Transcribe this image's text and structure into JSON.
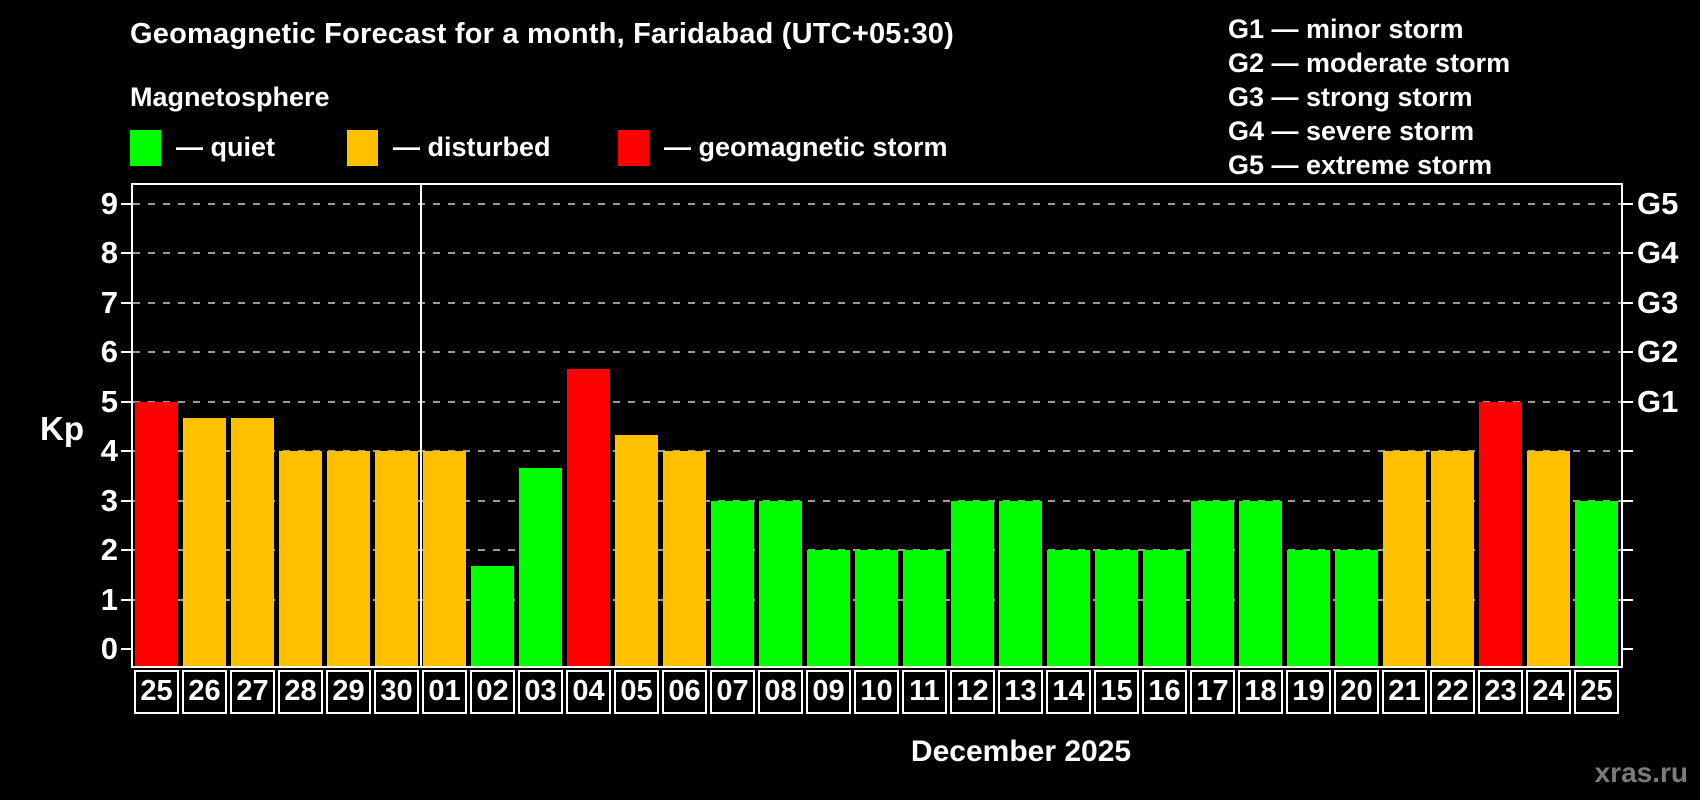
{
  "header": {
    "title": "Geomagnetic Forecast for a month, Faridabad (UTC+05:30)",
    "subtitle": "Magnetosphere"
  },
  "legend": {
    "items": [
      {
        "key": "quiet",
        "label": "— quiet"
      },
      {
        "key": "disturbed",
        "label": "— disturbed"
      },
      {
        "key": "storm",
        "label": "— geomagnetic storm"
      }
    ]
  },
  "storm_scale_legend": [
    "G1 — minor storm",
    "G2 — moderate storm",
    "G3 — strong storm",
    "G4 — severe storm",
    "G5 — extreme storm"
  ],
  "colors": {
    "quiet": "#00ff00",
    "disturbed": "#ffc000",
    "storm": "#ff0000",
    "background": "#000000",
    "axis": "#ffffff",
    "grid": "#9a9a9a",
    "watermark": "#7b7b7b"
  },
  "axis": {
    "y_label": "Kp",
    "y_ticks": [
      0,
      1,
      2,
      3,
      4,
      5,
      6,
      7,
      8,
      9
    ],
    "x_label": "December 2025"
  },
  "watermark": "xras.ru",
  "chart_data": {
    "type": "bar",
    "title": "Geomagnetic Forecast for a month, Faridabad (UTC+05:30)",
    "subtitle": "Magnetosphere",
    "xlabel": "December 2025",
    "ylabel": "Kp",
    "ylim": [
      -0.35,
      9.4
    ],
    "yticks": [
      0,
      1,
      2,
      3,
      4,
      5,
      6,
      7,
      8,
      9
    ],
    "grid": "horizontal-dashed",
    "legend_position": "top-left",
    "categories": [
      "25",
      "26",
      "27",
      "28",
      "29",
      "30",
      "01",
      "02",
      "03",
      "04",
      "05",
      "06",
      "07",
      "08",
      "09",
      "10",
      "11",
      "12",
      "13",
      "14",
      "15",
      "16",
      "17",
      "18",
      "19",
      "20",
      "21",
      "22",
      "23",
      "24",
      "25"
    ],
    "values": [
      5.0,
      4.67,
      4.67,
      4.0,
      4.0,
      4.0,
      4.0,
      1.67,
      3.67,
      5.67,
      4.33,
      4.0,
      3.0,
      3.0,
      2.0,
      2.0,
      2.0,
      3.0,
      3.0,
      2.0,
      2.0,
      2.0,
      3.0,
      3.0,
      2.0,
      2.0,
      4.0,
      4.0,
      5.0,
      4.0,
      3.0
    ],
    "statuses": [
      "storm",
      "disturbed",
      "disturbed",
      "disturbed",
      "disturbed",
      "disturbed",
      "disturbed",
      "quiet",
      "quiet",
      "storm",
      "disturbed",
      "disturbed",
      "quiet",
      "quiet",
      "quiet",
      "quiet",
      "quiet",
      "quiet",
      "quiet",
      "quiet",
      "quiet",
      "quiet",
      "quiet",
      "quiet",
      "quiet",
      "quiet",
      "disturbed",
      "disturbed",
      "storm",
      "disturbed",
      "quiet"
    ],
    "month_separator_after_index": 5,
    "right_axis": [
      {
        "value": 5,
        "label": "G1"
      },
      {
        "value": 6,
        "label": "G2"
      },
      {
        "value": 7,
        "label": "G3"
      },
      {
        "value": 8,
        "label": "G4"
      },
      {
        "value": 9,
        "label": "G5"
      }
    ]
  }
}
